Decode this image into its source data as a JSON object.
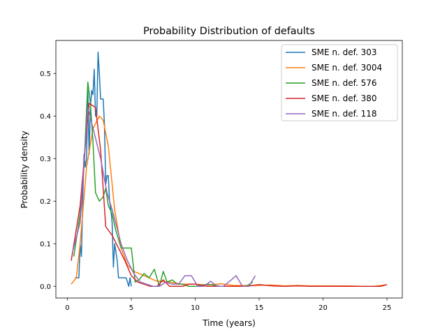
{
  "chart_data": {
    "type": "line",
    "title": "Probability Distribution of defaults",
    "xlabel": "Time (years)",
    "ylabel": "Probability density",
    "xlim": [
      -0.9,
      26.2
    ],
    "ylim": [
      -0.0275,
      0.5775
    ],
    "xticks": [
      0,
      5,
      10,
      15,
      20,
      25
    ],
    "yticks": [
      0.0,
      0.1,
      0.2,
      0.3,
      0.4,
      0.5
    ],
    "xtick_labels": [
      "0",
      "5",
      "10",
      "15",
      "20",
      "25"
    ],
    "ytick_labels": [
      "0.0",
      "0.1",
      "0.2",
      "0.3",
      "0.4",
      "0.5"
    ],
    "grid": false,
    "legend_position": "top-right",
    "series": [
      {
        "name": "SME n. def. 303",
        "color": "#1f77b4",
        "x": [
          0.6,
          0.8,
          0.9,
          1.0,
          1.1,
          1.2,
          1.3,
          1.4,
          1.5,
          1.6,
          1.7,
          1.8,
          1.9,
          2.0,
          2.1,
          2.2,
          2.3,
          2.4,
          2.5,
          2.6,
          2.7,
          2.8,
          2.9,
          3.0,
          3.1,
          3.2,
          3.3,
          3.4,
          3.5,
          3.6,
          3.7,
          3.8,
          3.9,
          4.0,
          4.2,
          4.4,
          4.6,
          4.8,
          4.9,
          5.0
        ],
        "y": [
          0.02,
          0.02,
          0.02,
          0.1,
          0.07,
          0.2,
          0.31,
          0.28,
          0.3,
          0.46,
          0.31,
          0.42,
          0.46,
          0.45,
          0.51,
          0.4,
          0.4,
          0.55,
          0.5,
          0.44,
          0.44,
          0.44,
          0.38,
          0.24,
          0.26,
          0.26,
          0.2,
          0.18,
          0.15,
          0.045,
          0.1,
          0.08,
          0.06,
          0.02,
          0.02,
          0.02,
          0.02,
          0.0,
          0.02,
          0.0
        ]
      },
      {
        "name": "SME n. def. 3004",
        "color": "#ff7f0e",
        "x": [
          0.3,
          0.7,
          1.0,
          1.5,
          2.0,
          2.5,
          2.8,
          3.2,
          3.7,
          4.2,
          4.7,
          5.2,
          6.0,
          7.0,
          8.0,
          9.0,
          10.0,
          11.0,
          12.0,
          13.0,
          14.0,
          15.0,
          16.0,
          17.0,
          18.0,
          19.0,
          20.0,
          21.0,
          22.0,
          23.0,
          24.0,
          25.0
        ],
        "y": [
          0.005,
          0.02,
          0.1,
          0.28,
          0.37,
          0.4,
          0.39,
          0.33,
          0.18,
          0.09,
          0.05,
          0.035,
          0.025,
          0.012,
          0.01,
          0.005,
          0.005,
          0.003,
          0.006,
          0.002,
          0.002,
          0.002,
          0.003,
          0.001,
          0.002,
          0.001,
          0.001,
          0.001,
          0.001,
          0.0,
          0.0,
          0.004
        ]
      },
      {
        "name": "SME n. def. 576",
        "color": "#2ca02c",
        "x": [
          0.5,
          1.0,
          1.3,
          1.6,
          1.8,
          2.0,
          2.2,
          2.5,
          2.8,
          3.0,
          3.2,
          3.5,
          3.8,
          4.2,
          4.6,
          5.0,
          5.3,
          5.6,
          6.0,
          6.4,
          6.8,
          7.2,
          7.5,
          7.8,
          8.2,
          8.6,
          9.0,
          9.5,
          10.0,
          11.0,
          12.0,
          13.0,
          14.0,
          14.5
        ],
        "y": [
          0.07,
          0.17,
          0.28,
          0.48,
          0.43,
          0.34,
          0.22,
          0.2,
          0.21,
          0.23,
          0.19,
          0.17,
          0.13,
          0.09,
          0.09,
          0.09,
          0.01,
          0.015,
          0.03,
          0.02,
          0.04,
          0.0,
          0.035,
          0.01,
          0.015,
          0.005,
          0.005,
          0.0,
          0.0,
          0.005,
          0.0,
          0.0,
          0.0,
          0.01
        ]
      },
      {
        "name": "SME n. def. 380",
        "color": "#d62728",
        "x": [
          0.3,
          1.0,
          1.7,
          2.2,
          2.6,
          3.0,
          3.5,
          4.0,
          4.5,
          5.0,
          5.5,
          6.0,
          6.5,
          7.0,
          7.5,
          8.0,
          8.5,
          9.0,
          9.5,
          10.0,
          11.0,
          12.0,
          13.0,
          14.0,
          15.0,
          16.0,
          17.0,
          18.0,
          19.0,
          20.0,
          21.0,
          22.0,
          23.0,
          24.0,
          24.5,
          25.0
        ],
        "y": [
          0.06,
          0.19,
          0.43,
          0.42,
          0.32,
          0.14,
          0.12,
          0.09,
          0.06,
          0.025,
          0.01,
          0.005,
          0.0,
          0.0,
          0.015,
          0.0,
          0.0,
          0.0,
          0.005,
          0.005,
          0.0,
          0.0,
          0.0,
          0.0,
          0.004,
          0.001,
          0.0,
          0.001,
          0.0,
          0.0,
          0.0,
          0.0,
          0.0,
          0.0,
          0.0,
          0.004
        ]
      },
      {
        "name": "SME n. def. 118",
        "color": "#9467bd",
        "x": [
          0.4,
          1.0,
          1.6,
          2.1,
          2.6,
          3.1,
          3.6,
          4.2,
          4.7,
          5.2,
          5.7,
          6.2,
          6.7,
          7.2,
          7.7,
          8.2,
          8.7,
          9.2,
          9.7,
          10.2,
          10.7,
          11.2,
          11.7,
          12.2,
          12.7,
          13.2,
          13.7,
          14.2,
          14.7
        ],
        "y": [
          0.08,
          0.15,
          0.42,
          0.36,
          0.3,
          0.22,
          0.17,
          0.1,
          0.06,
          0.03,
          0.01,
          0.005,
          0.0,
          0.0,
          0.01,
          0.005,
          0.005,
          0.025,
          0.025,
          0.0,
          0.0,
          0.012,
          0.0,
          0.0,
          0.012,
          0.025,
          0.0,
          0.0,
          0.025
        ]
      }
    ]
  }
}
